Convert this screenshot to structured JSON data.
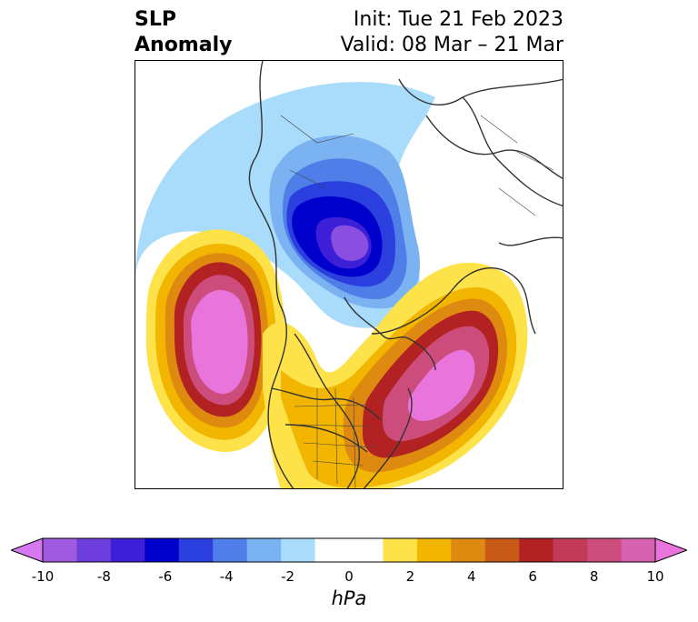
{
  "header": {
    "title_line1": "SLP",
    "title_line2": "Anomaly",
    "init": "Init: Tue 21 Feb 2023",
    "valid": "Valid: 08 Mar – 21 Mar"
  },
  "colorbar": {
    "units": "hPa",
    "min": -10,
    "max": 10,
    "step": 1,
    "ticks": [
      "-10",
      "-8",
      "-6",
      "-4",
      "-2",
      "0",
      "2",
      "4",
      "6",
      "8",
      "10"
    ],
    "colors": [
      "#a05ae0",
      "#6e3edc",
      "#3c1fd6",
      "#0000cc",
      "#2b3fde",
      "#4f7ee8",
      "#7ab2f2",
      "#a9dbfb",
      "#ffffff",
      "#ffffff",
      "#fde24a",
      "#f2b500",
      "#de8a10",
      "#c85a18",
      "#b22222",
      "#c23a58",
      "#cc4c7c",
      "#d862b2"
    ],
    "under_color": "#d678f0",
    "over_color": "#e874dc"
  },
  "map": {
    "projection": "polar-stereographic",
    "features": [
      {
        "name": "aleutian-high-anomaly",
        "sign": "positive",
        "peak_hpa": 10
      },
      {
        "name": "north-atlantic-high-anomaly",
        "sign": "positive",
        "peak_hpa": 10
      },
      {
        "name": "arctic-low-anomaly",
        "sign": "negative",
        "peak_hpa": -10
      }
    ]
  }
}
